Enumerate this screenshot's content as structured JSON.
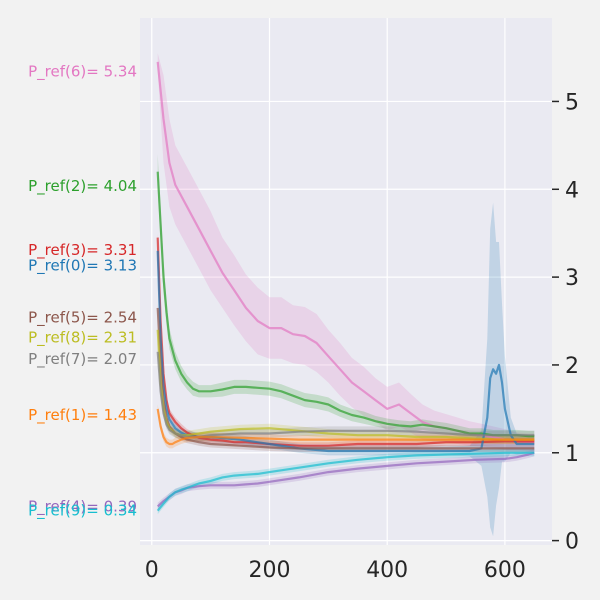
{
  "chart_data": {
    "type": "line",
    "title": "",
    "xlabel": "",
    "ylabel": "",
    "xlim": [
      -20,
      680
    ],
    "ylim": [
      -0.05,
      5.95
    ],
    "xticks": [
      0,
      200,
      400,
      600
    ],
    "xtick_labels": [
      "0",
      "200",
      "400",
      "600"
    ],
    "yticks": [
      0,
      1,
      2,
      3,
      4,
      5
    ],
    "ytick_labels": [
      "0",
      "1",
      "2",
      "3",
      "4",
      "5"
    ],
    "y_axis_side": "right",
    "grid": true,
    "background": "#eaeaf2",
    "annotations": [
      {
        "text": "P_ref(6)= 5.34",
        "y": 5.34,
        "color": "#e377c2"
      },
      {
        "text": "P_ref(2)= 4.04",
        "y": 4.04,
        "color": "#2ca02c"
      },
      {
        "text": "P_ref(3)= 3.31",
        "y": 3.31,
        "color": "#d62728"
      },
      {
        "text": "P_ref(0)= 3.13",
        "y": 3.13,
        "color": "#1f77b4"
      },
      {
        "text": "P_ref(5)= 2.54",
        "y": 2.54,
        "color": "#8c564b"
      },
      {
        "text": "P_ref(8)= 2.31",
        "y": 2.31,
        "color": "#bcbd22"
      },
      {
        "text": "P_ref(7)= 2.07",
        "y": 2.07,
        "color": "#7f7f7f"
      },
      {
        "text": "P_ref(1)= 1.43",
        "y": 1.43,
        "color": "#ff7f0e"
      },
      {
        "text": "P_ref(4)= 0.39",
        "y": 0.39,
        "color": "#9467bd"
      },
      {
        "text": "P_ref(9)= 0.34",
        "y": 0.34,
        "color": "#17becf"
      }
    ],
    "series": [
      {
        "id": "6",
        "color": "#e377c2",
        "x": [
          10,
          20,
          30,
          40,
          60,
          80,
          100,
          120,
          140,
          160,
          180,
          200,
          220,
          240,
          260,
          280,
          300,
          320,
          340,
          360,
          380,
          400,
          420,
          440,
          460,
          480,
          500,
          520,
          540,
          560,
          580,
          600,
          620,
          640,
          650
        ],
        "y": [
          5.45,
          4.8,
          4.3,
          4.05,
          3.8,
          3.55,
          3.3,
          3.05,
          2.85,
          2.65,
          2.5,
          2.42,
          2.42,
          2.35,
          2.33,
          2.25,
          2.1,
          1.95,
          1.8,
          1.7,
          1.6,
          1.5,
          1.55,
          1.45,
          1.35,
          1.3,
          1.28,
          1.25,
          1.22,
          1.2,
          1.18,
          1.15,
          1.13,
          1.12,
          1.12
        ],
        "band": [
          0.1,
          0.5,
          0.5,
          0.45,
          0.45,
          0.45,
          0.45,
          0.4,
          0.4,
          0.38,
          0.38,
          0.35,
          0.35,
          0.33,
          0.33,
          0.33,
          0.3,
          0.3,
          0.28,
          0.28,
          0.25,
          0.25,
          0.25,
          0.22,
          0.2,
          0.18,
          0.16,
          0.15,
          0.14,
          0.13,
          0.12,
          0.12,
          0.1,
          0.1,
          0.1
        ]
      },
      {
        "id": "2",
        "color": "#2ca02c",
        "x": [
          10,
          15,
          20,
          25,
          30,
          40,
          50,
          60,
          70,
          80,
          90,
          100,
          120,
          140,
          160,
          180,
          200,
          220,
          240,
          260,
          280,
          300,
          320,
          340,
          360,
          380,
          400,
          420,
          440,
          460,
          480,
          500,
          520,
          540,
          560,
          580,
          600,
          620,
          640,
          650
        ],
        "y": [
          4.2,
          3.6,
          3.0,
          2.6,
          2.3,
          2.05,
          1.9,
          1.8,
          1.73,
          1.7,
          1.7,
          1.7,
          1.72,
          1.75,
          1.75,
          1.74,
          1.73,
          1.7,
          1.65,
          1.6,
          1.58,
          1.55,
          1.48,
          1.43,
          1.4,
          1.36,
          1.33,
          1.31,
          1.3,
          1.32,
          1.3,
          1.28,
          1.25,
          1.22,
          1.22,
          1.2,
          1.2,
          1.2,
          1.19,
          1.19
        ],
        "band": [
          0.2,
          0.2,
          0.18,
          0.15,
          0.12,
          0.1,
          0.09,
          0.08,
          0.08,
          0.07,
          0.07,
          0.07,
          0.08,
          0.08,
          0.08,
          0.08,
          0.08,
          0.08,
          0.08,
          0.08,
          0.08,
          0.08,
          0.07,
          0.07,
          0.07,
          0.06,
          0.06,
          0.06,
          0.06,
          0.06,
          0.06,
          0.06,
          0.06,
          0.06,
          0.06,
          0.06,
          0.06,
          0.06,
          0.06,
          0.06
        ]
      },
      {
        "id": "3",
        "color": "#d62728",
        "x": [
          10,
          15,
          20,
          25,
          30,
          40,
          50,
          60,
          70,
          80,
          100,
          120,
          140,
          160,
          200,
          250,
          300,
          350,
          400,
          450,
          500,
          550,
          600,
          650
        ],
        "y": [
          3.45,
          2.5,
          1.9,
          1.6,
          1.45,
          1.35,
          1.28,
          1.23,
          1.2,
          1.17,
          1.15,
          1.14,
          1.12,
          1.12,
          1.1,
          1.08,
          1.08,
          1.1,
          1.1,
          1.1,
          1.12,
          1.12,
          1.13,
          1.13
        ],
        "band": [
          0.05,
          0.06,
          0.06,
          0.05,
          0.05,
          0.05,
          0.05,
          0.04,
          0.04,
          0.04,
          0.04,
          0.04,
          0.04,
          0.04,
          0.04,
          0.04,
          0.04,
          0.04,
          0.04,
          0.04,
          0.04,
          0.04,
          0.04,
          0.04
        ]
      },
      {
        "id": "0",
        "color": "#1f77b4",
        "x": [
          10,
          15,
          20,
          25,
          30,
          40,
          50,
          60,
          80,
          100,
          150,
          200,
          250,
          300,
          350,
          400,
          450,
          500,
          540,
          560,
          570,
          575,
          580,
          585,
          590,
          595,
          600,
          610,
          620,
          640,
          650
        ],
        "y": [
          3.3,
          2.3,
          1.75,
          1.5,
          1.38,
          1.28,
          1.23,
          1.2,
          1.18,
          1.18,
          1.15,
          1.1,
          1.05,
          1.02,
          1.02,
          1.02,
          1.02,
          1.02,
          1.02,
          1.05,
          1.4,
          1.85,
          1.95,
          1.9,
          2.0,
          1.8,
          1.5,
          1.2,
          1.1,
          1.1,
          1.1
        ],
        "band": [
          0.05,
          0.06,
          0.06,
          0.05,
          0.05,
          0.05,
          0.05,
          0.05,
          0.05,
          0.05,
          0.05,
          0.05,
          0.05,
          0.05,
          0.05,
          0.05,
          0.05,
          0.05,
          0.06,
          0.2,
          0.9,
          1.7,
          1.9,
          1.5,
          1.4,
          0.9,
          0.6,
          0.2,
          0.12,
          0.1,
          0.1
        ]
      },
      {
        "id": "5",
        "color": "#8c564b",
        "x": [
          10,
          15,
          20,
          25,
          30,
          40,
          50,
          60,
          80,
          100,
          150,
          200,
          250,
          300,
          350,
          400,
          450,
          500,
          550,
          600,
          650
        ],
        "y": [
          2.65,
          2.0,
          1.6,
          1.4,
          1.3,
          1.22,
          1.18,
          1.15,
          1.12,
          1.1,
          1.08,
          1.06,
          1.05,
          1.05,
          1.05,
          1.05,
          1.05,
          1.05,
          1.05,
          1.05,
          1.05
        ],
        "band": [
          0.05,
          0.05,
          0.05,
          0.05,
          0.05,
          0.04,
          0.04,
          0.04,
          0.04,
          0.04,
          0.04,
          0.04,
          0.04,
          0.04,
          0.04,
          0.04,
          0.04,
          0.04,
          0.04,
          0.04,
          0.04
        ]
      },
      {
        "id": "8",
        "color": "#bcbd22",
        "x": [
          10,
          15,
          20,
          25,
          30,
          40,
          50,
          60,
          80,
          100,
          150,
          200,
          250,
          300,
          350,
          400,
          450,
          500,
          550,
          600,
          650
        ],
        "y": [
          2.4,
          1.8,
          1.5,
          1.35,
          1.28,
          1.22,
          1.2,
          1.2,
          1.22,
          1.24,
          1.27,
          1.28,
          1.25,
          1.22,
          1.2,
          1.2,
          1.18,
          1.18,
          1.16,
          1.15,
          1.15
        ],
        "band": [
          0.05,
          0.05,
          0.05,
          0.05,
          0.05,
          0.05,
          0.05,
          0.05,
          0.05,
          0.05,
          0.05,
          0.05,
          0.05,
          0.05,
          0.05,
          0.05,
          0.05,
          0.05,
          0.05,
          0.05,
          0.05
        ]
      },
      {
        "id": "7",
        "color": "#7f7f7f",
        "x": [
          10,
          15,
          20,
          25,
          30,
          40,
          50,
          60,
          80,
          100,
          150,
          200,
          250,
          300,
          350,
          400,
          450,
          500,
          550,
          600,
          650
        ],
        "y": [
          2.15,
          1.7,
          1.45,
          1.32,
          1.26,
          1.22,
          1.2,
          1.18,
          1.18,
          1.2,
          1.22,
          1.22,
          1.24,
          1.25,
          1.25,
          1.25,
          1.24,
          1.22,
          1.2,
          1.2,
          1.2
        ],
        "band": [
          0.05,
          0.05,
          0.05,
          0.05,
          0.05,
          0.05,
          0.05,
          0.05,
          0.05,
          0.05,
          0.05,
          0.05,
          0.05,
          0.05,
          0.05,
          0.05,
          0.05,
          0.05,
          0.05,
          0.05,
          0.05
        ]
      },
      {
        "id": "1",
        "color": "#ff7f0e",
        "x": [
          10,
          15,
          20,
          25,
          30,
          35,
          40,
          50,
          60,
          80,
          100,
          150,
          200,
          250,
          300,
          350,
          400,
          450,
          500,
          550,
          600,
          650
        ],
        "y": [
          1.5,
          1.3,
          1.18,
          1.12,
          1.1,
          1.1,
          1.12,
          1.15,
          1.17,
          1.18,
          1.18,
          1.17,
          1.16,
          1.15,
          1.15,
          1.15,
          1.15,
          1.15,
          1.15,
          1.15,
          1.15,
          1.15
        ],
        "band": [
          0.05,
          0.05,
          0.05,
          0.05,
          0.05,
          0.05,
          0.05,
          0.05,
          0.05,
          0.05,
          0.05,
          0.05,
          0.05,
          0.05,
          0.05,
          0.05,
          0.05,
          0.05,
          0.05,
          0.05,
          0.05,
          0.05
        ]
      },
      {
        "id": "4",
        "color": "#9467bd",
        "x": [
          10,
          20,
          30,
          40,
          50,
          60,
          70,
          80,
          100,
          120,
          140,
          160,
          180,
          200,
          250,
          300,
          350,
          400,
          450,
          500,
          550,
          600,
          620,
          640,
          650
        ],
        "y": [
          0.39,
          0.45,
          0.5,
          0.55,
          0.57,
          0.6,
          0.61,
          0.62,
          0.63,
          0.63,
          0.63,
          0.64,
          0.65,
          0.67,
          0.72,
          0.78,
          0.82,
          0.85,
          0.88,
          0.9,
          0.92,
          0.93,
          0.95,
          0.98,
          1.0
        ],
        "band": [
          0.04,
          0.04,
          0.04,
          0.04,
          0.04,
          0.04,
          0.04,
          0.04,
          0.04,
          0.04,
          0.04,
          0.04,
          0.04,
          0.04,
          0.04,
          0.04,
          0.04,
          0.04,
          0.04,
          0.04,
          0.04,
          0.04,
          0.04,
          0.04,
          0.04
        ]
      },
      {
        "id": "9",
        "color": "#17becf",
        "x": [
          10,
          20,
          30,
          40,
          50,
          60,
          80,
          100,
          120,
          140,
          160,
          180,
          200,
          250,
          300,
          350,
          400,
          450,
          500,
          550,
          600,
          650
        ],
        "y": [
          0.34,
          0.42,
          0.5,
          0.55,
          0.58,
          0.6,
          0.65,
          0.68,
          0.72,
          0.74,
          0.75,
          0.76,
          0.78,
          0.83,
          0.88,
          0.92,
          0.95,
          0.97,
          0.98,
          0.99,
          1.0,
          1.0
        ],
        "band": [
          0.04,
          0.04,
          0.04,
          0.04,
          0.04,
          0.04,
          0.04,
          0.04,
          0.04,
          0.04,
          0.04,
          0.04,
          0.04,
          0.04,
          0.04,
          0.04,
          0.04,
          0.04,
          0.04,
          0.04,
          0.04,
          0.04
        ]
      }
    ]
  }
}
